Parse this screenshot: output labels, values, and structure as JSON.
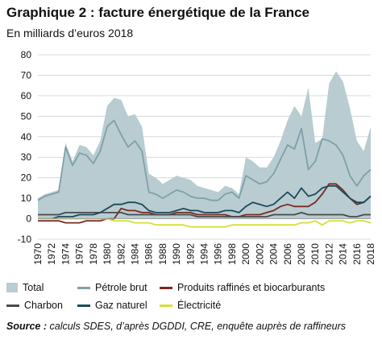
{
  "header": {
    "title": "Graphique 2 : facture énergétique de la France",
    "subtitle": "En milliards d’euros 2018"
  },
  "source": {
    "label": "Source :",
    "text": "calculs SDES, d’après DGDDI, CRE, enquête auprès de raffineurs"
  },
  "chart_data": {
    "type": "area",
    "x": [
      1970,
      1971,
      1972,
      1973,
      1974,
      1975,
      1976,
      1977,
      1978,
      1979,
      1980,
      1981,
      1982,
      1983,
      1984,
      1985,
      1986,
      1987,
      1988,
      1989,
      1990,
      1991,
      1992,
      1993,
      1994,
      1995,
      1996,
      1997,
      1998,
      1999,
      2000,
      2001,
      2002,
      2003,
      2004,
      2005,
      2006,
      2007,
      2008,
      2009,
      2010,
      2011,
      2012,
      2013,
      2014,
      2015,
      2016,
      2017,
      2018
    ],
    "xticks": [
      1970,
      1972,
      1974,
      1976,
      1978,
      1980,
      1982,
      1984,
      1986,
      1988,
      1990,
      1992,
      1994,
      1996,
      1998,
      2000,
      2002,
      2004,
      2006,
      2008,
      2010,
      2012,
      2014,
      2016,
      2018
    ],
    "ylim": [
      -10,
      80
    ],
    "yticks": [
      -10,
      0,
      10,
      20,
      30,
      40,
      50,
      60,
      70,
      80
    ],
    "grid": true,
    "legend_position": "bottom",
    "series": [
      {
        "name": "Total",
        "kind": "area",
        "color": "#b8ccd1",
        "values": [
          10,
          12,
          13,
          14,
          37,
          28,
          36,
          35,
          31,
          38,
          55,
          59,
          58,
          50,
          51,
          45,
          22,
          20,
          17,
          19,
          21,
          20,
          19,
          16,
          15,
          14,
          13,
          16,
          15,
          12,
          30,
          28,
          25,
          25,
          30,
          38,
          48,
          55,
          50,
          64,
          37,
          39,
          66,
          72,
          67,
          54,
          38,
          33,
          45
        ]
      },
      {
        "name": "Pétrole brut",
        "kind": "line",
        "color": "#7fa0a8",
        "values": [
          9,
          11,
          12,
          13,
          35,
          26,
          32,
          31,
          27,
          33,
          45,
          48,
          41,
          35,
          38,
          33,
          13,
          12,
          10,
          12,
          14,
          13,
          11,
          10,
          10,
          9,
          9,
          12,
          13,
          10,
          21,
          19,
          17,
          18,
          22,
          29,
          36,
          34,
          44,
          24,
          28,
          39,
          38,
          36,
          31,
          21,
          16,
          21,
          24
        ]
      },
      {
        "name": "Produits raffinés et biocarburants",
        "kind": "line",
        "color": "#7a2a22",
        "values": [
          -1,
          -1,
          -1,
          -1,
          -2,
          -2,
          -2,
          -1,
          -1,
          -1,
          0,
          0,
          5,
          4,
          4,
          3,
          3,
          2,
          2,
          2,
          3,
          3,
          3,
          2,
          2,
          2,
          2,
          2,
          1,
          1,
          2,
          2,
          2,
          3,
          4,
          6,
          7,
          6,
          6,
          6,
          8,
          12,
          17,
          17,
          14,
          10,
          7,
          8,
          11
        ]
      },
      {
        "name": "Charbon",
        "kind": "line",
        "color": "#4a4a4a",
        "values": [
          2,
          2,
          2,
          2,
          3,
          3,
          3,
          3,
          3,
          3,
          3,
          3,
          3,
          2,
          2,
          2,
          2,
          2,
          2,
          2,
          2,
          2,
          2,
          1,
          1,
          1,
          1,
          1,
          1,
          1,
          1,
          1,
          1,
          1,
          2,
          2,
          2,
          2,
          3,
          2,
          2,
          2,
          2,
          2,
          2,
          1,
          1,
          2,
          2
        ]
      },
      {
        "name": "Gaz naturel",
        "kind": "line",
        "color": "#1a4a5c",
        "values": [
          0,
          0,
          0,
          1,
          1,
          1,
          2,
          2,
          2,
          3,
          5,
          7,
          7,
          8,
          8,
          7,
          4,
          3,
          3,
          3,
          4,
          5,
          4,
          4,
          3,
          3,
          3,
          4,
          4,
          3,
          6,
          8,
          7,
          6,
          7,
          10,
          13,
          10,
          15,
          11,
          12,
          15,
          16,
          16,
          13,
          10,
          8,
          8,
          11
        ]
      },
      {
        "name": "Électricité",
        "kind": "line",
        "color": "#d6df3a",
        "values": [
          0,
          0,
          0,
          0,
          0,
          0,
          0,
          0,
          0,
          0,
          0,
          -1,
          -1,
          -1,
          -2,
          -2,
          -2,
          -3,
          -3,
          -3,
          -3,
          -3,
          -4,
          -4,
          -4,
          -4,
          -4,
          -4,
          -3,
          -3,
          -3,
          -3,
          -3,
          -3,
          -3,
          -3,
          -3,
          -3,
          -2,
          -2,
          -1,
          -3,
          -1,
          -1,
          -1,
          -2,
          -1,
          -1,
          -2
        ]
      }
    ]
  }
}
